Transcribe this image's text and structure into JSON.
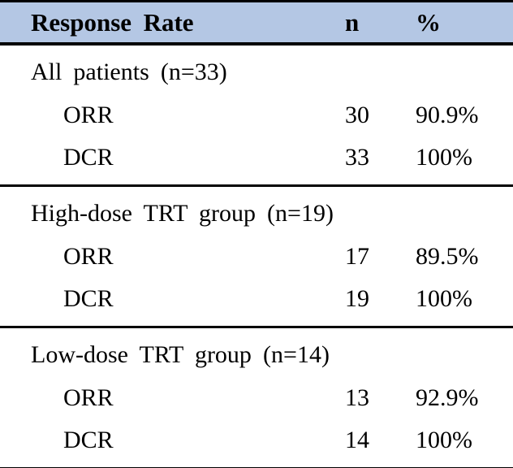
{
  "table": {
    "header": {
      "col1": "Response Rate",
      "col2": "n",
      "col3": "%"
    },
    "sections": [
      {
        "label": "All patients (n=33)",
        "rows": [
          {
            "label": "ORR",
            "n": "30",
            "pct": "90.9%"
          },
          {
            "label": "DCR",
            "n": "33",
            "pct": "100%"
          }
        ]
      },
      {
        "label": "High-dose TRT group (n=19)",
        "rows": [
          {
            "label": "ORR",
            "n": "17",
            "pct": "89.5%"
          },
          {
            "label": "DCR",
            "n": "19",
            "pct": "100%"
          }
        ]
      },
      {
        "label": "Low-dose TRT group (n=14)",
        "rows": [
          {
            "label": "ORR",
            "n": "13",
            "pct": "92.9%"
          },
          {
            "label": "DCR",
            "n": "14",
            "pct": "100%"
          }
        ]
      }
    ],
    "colors": {
      "header_bg": "#b4c7e4",
      "rule": "#000000",
      "text": "#000000"
    }
  },
  "chart_data": {
    "type": "table",
    "title": "Response Rate",
    "columns": [
      "Response Rate",
      "n",
      "%"
    ],
    "rows": [
      [
        "All patients (n=33)",
        "",
        ""
      ],
      [
        "ORR",
        "30",
        "90.9%"
      ],
      [
        "DCR",
        "33",
        "100%"
      ],
      [
        "High-dose TRT group (n=19)",
        "",
        ""
      ],
      [
        "ORR",
        "17",
        "89.5%"
      ],
      [
        "DCR",
        "19",
        "100%"
      ],
      [
        "Low-dose TRT group (n=14)",
        "",
        ""
      ],
      [
        "ORR",
        "13",
        "92.9%"
      ],
      [
        "DCR",
        "14",
        "100%"
      ]
    ]
  }
}
